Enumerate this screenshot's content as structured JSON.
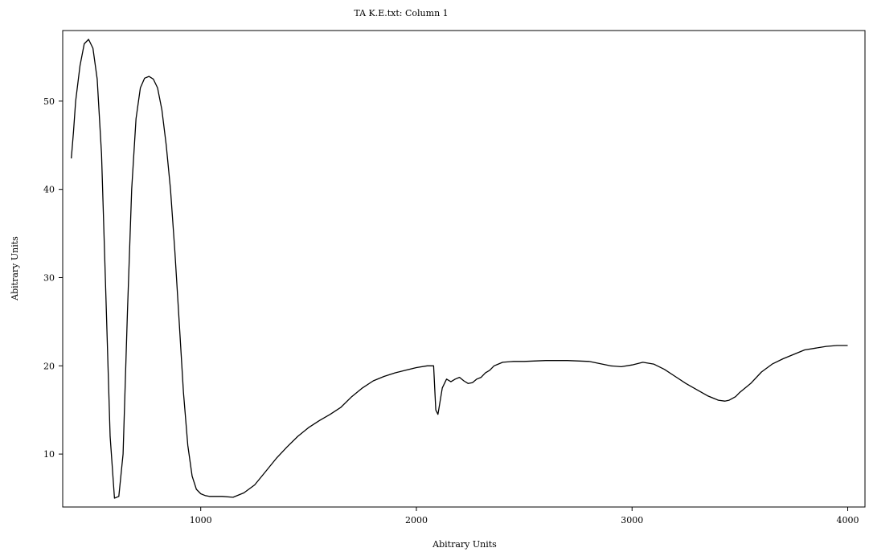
{
  "chart_data": {
    "type": "line",
    "title": "TA K.E.txt: Column 1",
    "xlabel": "Abitrary Units",
    "ylabel": "Abitrary Units",
    "xlim": [
      360,
      4080
    ],
    "ylim": [
      4,
      58
    ],
    "x_ticks": [
      1000,
      2000,
      3000,
      4000
    ],
    "y_ticks": [
      10,
      20,
      30,
      40,
      50
    ],
    "grid": false,
    "legend": "none",
    "series": [
      {
        "color": "#000000",
        "x": [
          400,
          410,
          420,
          440,
          460,
          480,
          500,
          520,
          540,
          560,
          580,
          600,
          620,
          640,
          660,
          680,
          700,
          720,
          740,
          760,
          780,
          800,
          820,
          840,
          860,
          880,
          900,
          920,
          940,
          960,
          980,
          1000,
          1020,
          1040,
          1060,
          1080,
          1100,
          1150,
          1200,
          1250,
          1300,
          1350,
          1400,
          1450,
          1500,
          1550,
          1600,
          1650,
          1700,
          1750,
          1800,
          1850,
          1900,
          1950,
          2000,
          2050,
          2080,
          2090,
          2100,
          2110,
          2120,
          2140,
          2160,
          2180,
          2200,
          2220,
          2240,
          2260,
          2280,
          2300,
          2320,
          2340,
          2360,
          2380,
          2400,
          2450,
          2500,
          2600,
          2700,
          2800,
          2900,
          2950,
          3000,
          3050,
          3100,
          3150,
          3200,
          3250,
          3300,
          3350,
          3400,
          3430,
          3450,
          3480,
          3500,
          3550,
          3600,
          3650,
          3700,
          3750,
          3800,
          3850,
          3900,
          3950,
          4000
        ],
        "y": [
          43.5,
          46.5,
          50,
          54,
          56.5,
          57,
          56,
          52.5,
          44,
          28,
          12,
          5,
          5.2,
          10,
          26,
          40,
          48,
          51.5,
          52.6,
          52.8,
          52.5,
          51.5,
          49,
          45,
          40,
          33,
          25,
          17,
          11,
          7.5,
          6,
          5.5,
          5.3,
          5.2,
          5.2,
          5.2,
          5.2,
          5.1,
          5.6,
          6.5,
          8,
          9.5,
          10.8,
          12,
          13,
          13.8,
          14.5,
          15.3,
          16.5,
          17.5,
          18.3,
          18.8,
          19.2,
          19.5,
          19.8,
          20,
          20,
          15,
          14.5,
          16,
          17.5,
          18.5,
          18.2,
          18.5,
          18.7,
          18.3,
          18,
          18.1,
          18.5,
          18.7,
          19.2,
          19.5,
          20,
          20.2,
          20.4,
          20.5,
          20.5,
          20.6,
          20.6,
          20.5,
          20,
          19.9,
          20.1,
          20.4,
          20.2,
          19.6,
          18.8,
          18,
          17.3,
          16.6,
          16.1,
          16,
          16.1,
          16.5,
          17,
          18,
          19.3,
          20.2,
          20.8,
          21.3,
          21.8,
          22,
          22.2,
          22.3,
          22.3
        ]
      }
    ]
  }
}
